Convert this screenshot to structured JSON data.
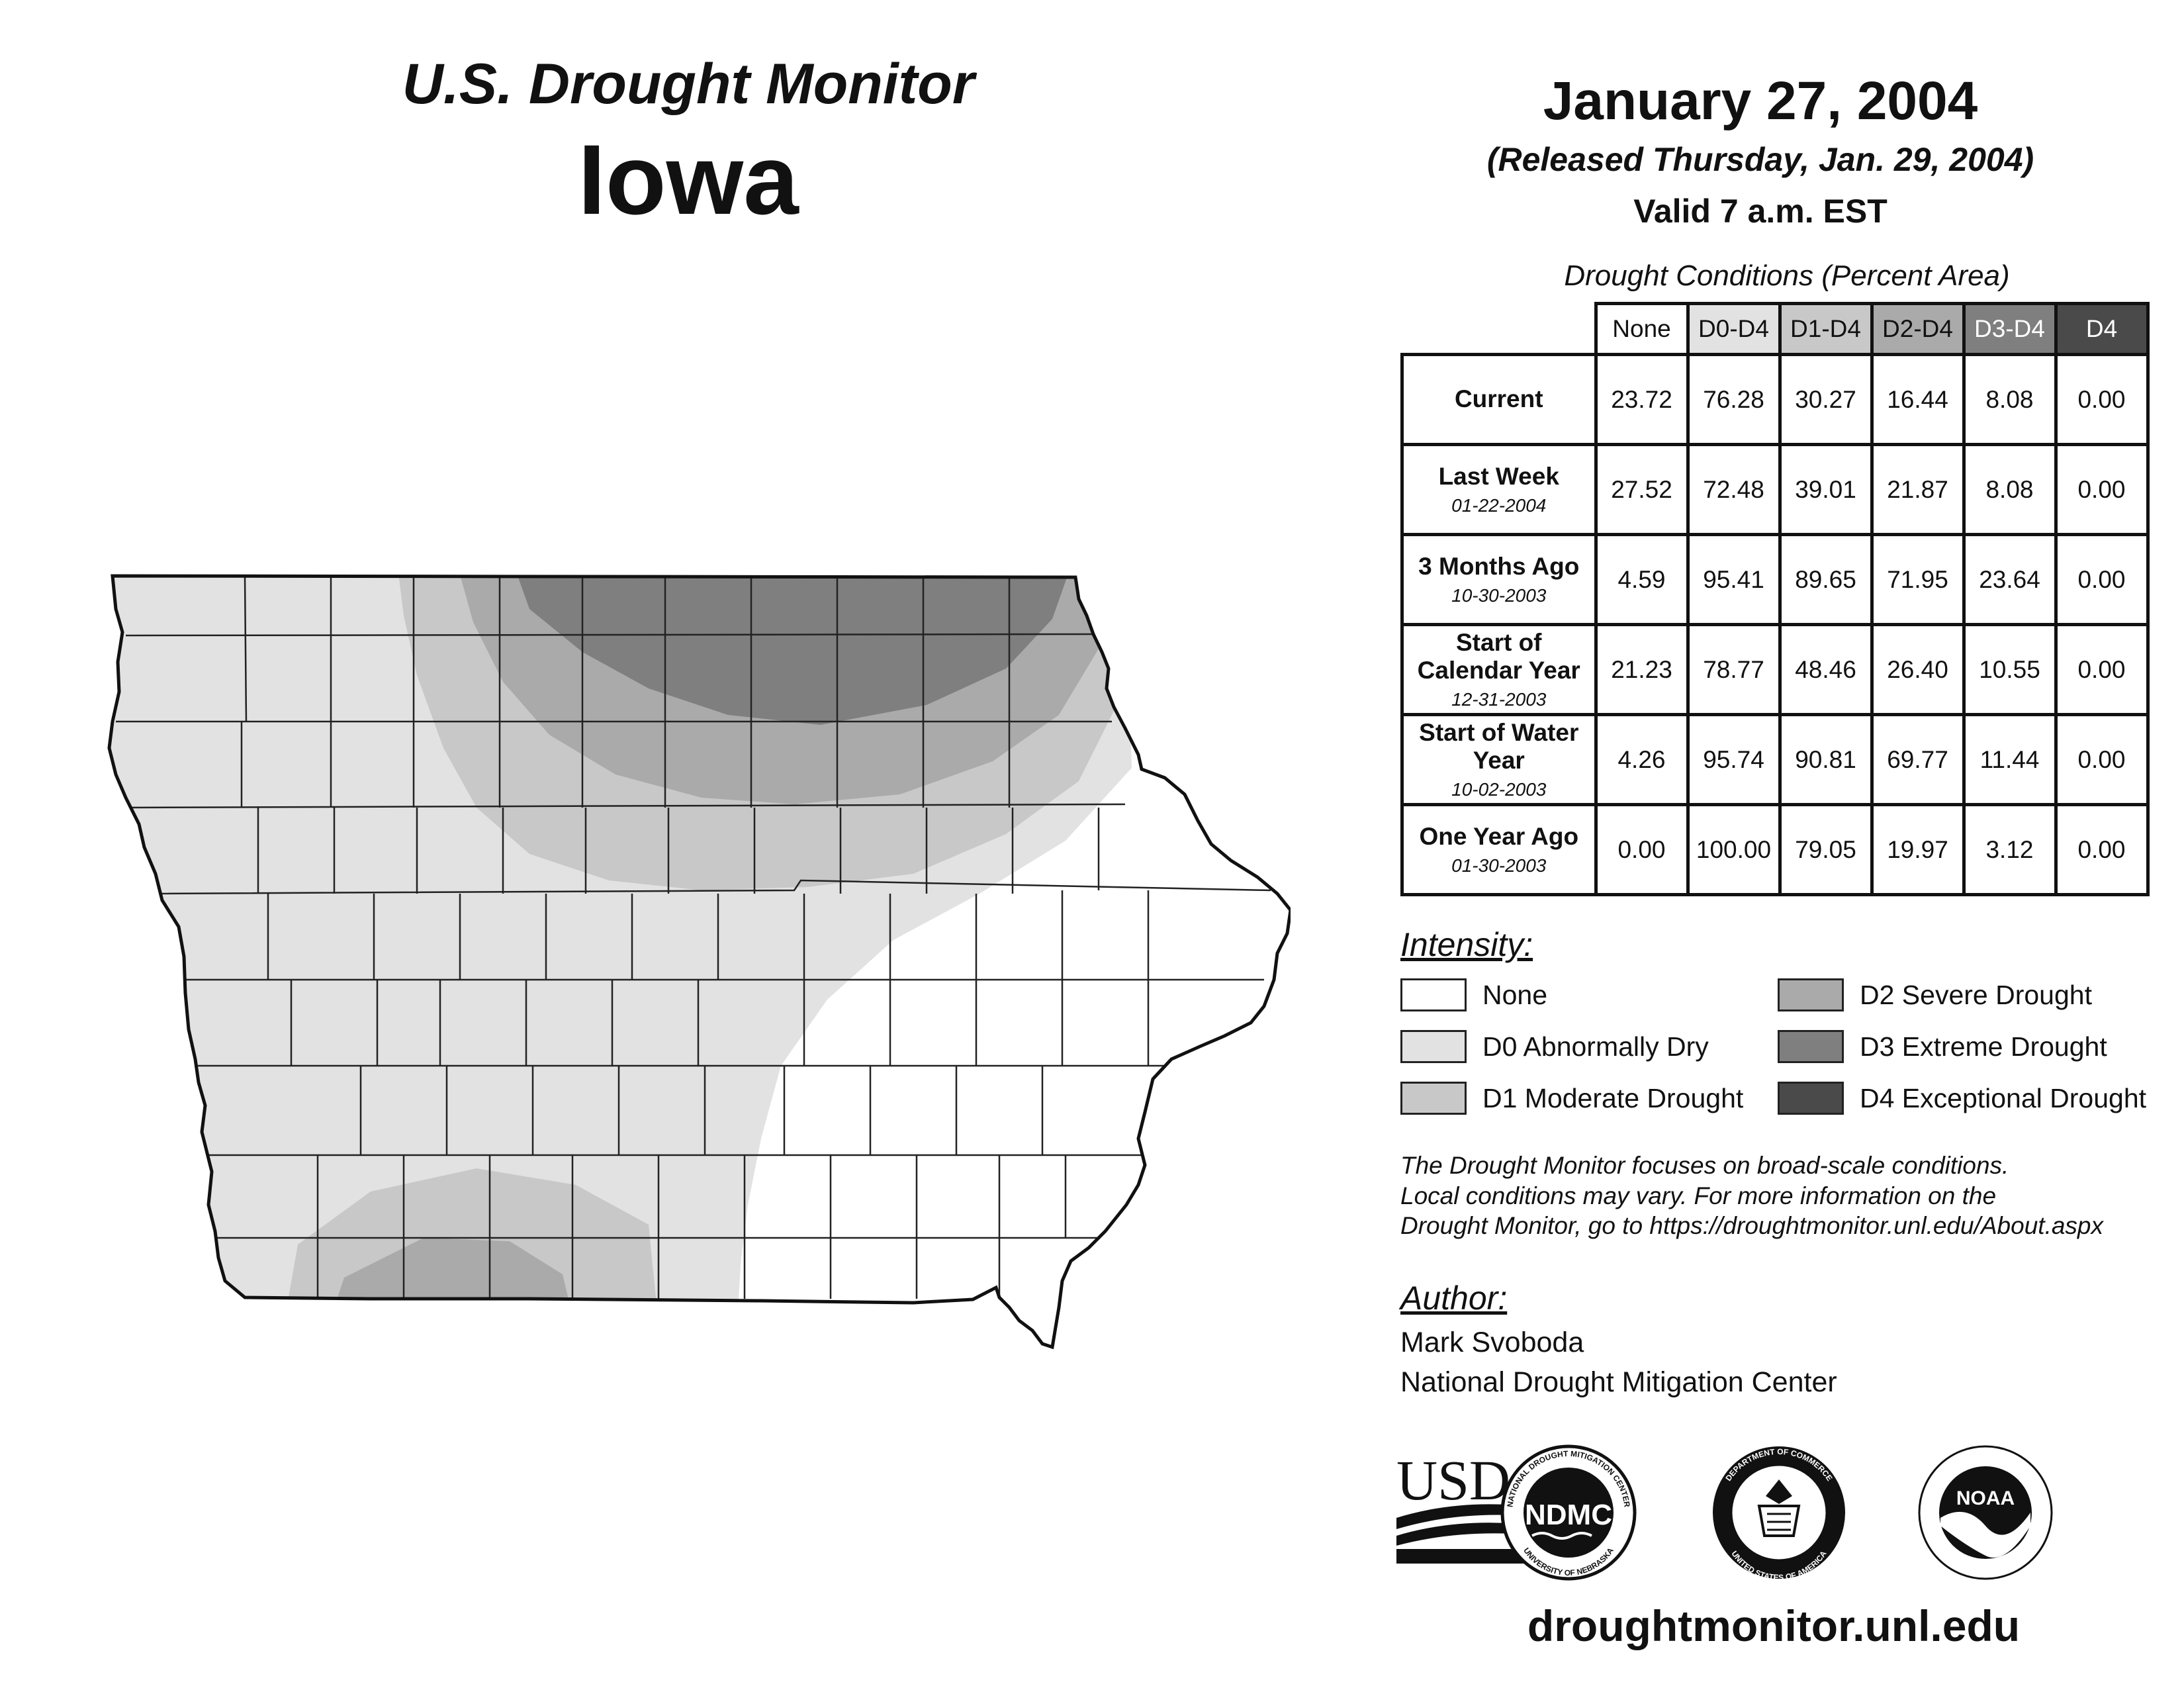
{
  "header": {
    "subtitle": "U.S. Drought Monitor",
    "state": "Iowa",
    "date": "January 27, 2004",
    "released": "(Released Thursday, Jan. 29, 2004)",
    "valid": "Valid 7 a.m. EST"
  },
  "table": {
    "caption": "Drought Conditions (Percent Area)",
    "columns": [
      "None",
      "D0-D4",
      "D1-D4",
      "D2-D4",
      "D3-D4",
      "D4"
    ],
    "rows": [
      {
        "label": "Current",
        "date": "",
        "values": [
          "23.72",
          "76.28",
          "30.27",
          "16.44",
          "8.08",
          "0.00"
        ]
      },
      {
        "label": "Last Week",
        "date": "01-22-2004",
        "values": [
          "27.52",
          "72.48",
          "39.01",
          "21.87",
          "8.08",
          "0.00"
        ]
      },
      {
        "label": "3 Months Ago",
        "date": "10-30-2003",
        "values": [
          "4.59",
          "95.41",
          "89.65",
          "71.95",
          "23.64",
          "0.00"
        ]
      },
      {
        "label": "Start of Calendar Year",
        "date": "12-31-2003",
        "values": [
          "21.23",
          "78.77",
          "48.46",
          "26.40",
          "10.55",
          "0.00"
        ]
      },
      {
        "label": "Start of Water Year",
        "date": "10-02-2003",
        "values": [
          "4.26",
          "95.74",
          "90.81",
          "69.77",
          "11.44",
          "0.00"
        ]
      },
      {
        "label": "One Year Ago",
        "date": "01-30-2003",
        "values": [
          "0.00",
          "100.00",
          "79.05",
          "19.97",
          "3.12",
          "0.00"
        ]
      }
    ]
  },
  "legend": {
    "title": "Intensity:",
    "items": [
      {
        "label": "None",
        "color": "#ffffff"
      },
      {
        "label": "D0 Abnormally Dry",
        "color": "#e2e2e2"
      },
      {
        "label": "D1 Moderate Drought",
        "color": "#c8c8c8"
      },
      {
        "label": "D2 Severe Drought",
        "color": "#aaaaaa"
      },
      {
        "label": "D3 Extreme Drought",
        "color": "#7f7f7f"
      },
      {
        "label": "D4 Exceptional Drought",
        "color": "#4a4a4a"
      }
    ]
  },
  "note": {
    "line1": "The Drought Monitor focuses on broad-scale conditions.",
    "line2": "Local conditions may vary. For more information on the",
    "line3": "Drought Monitor, go to https://droughtmonitor.unl.edu/About.aspx"
  },
  "author": {
    "title": "Author:",
    "name": "Mark Svoboda",
    "org": "National Drought Mitigation Center"
  },
  "logos": {
    "usda": "USDA",
    "ndmc": "NDMC",
    "ndmc_ring_top": "NATIONAL DROUGHT MITIGATION CENTER",
    "ndmc_ring_bottom": "UNIVERSITY OF NEBRASKA",
    "doc_ring_top": "DEPARTMENT OF COMMERCE",
    "doc_ring_bottom": "UNITED STATES OF AMERICA",
    "noaa": "NOAA"
  },
  "footer": {
    "url": "droughtmonitor.unl.edu"
  }
}
